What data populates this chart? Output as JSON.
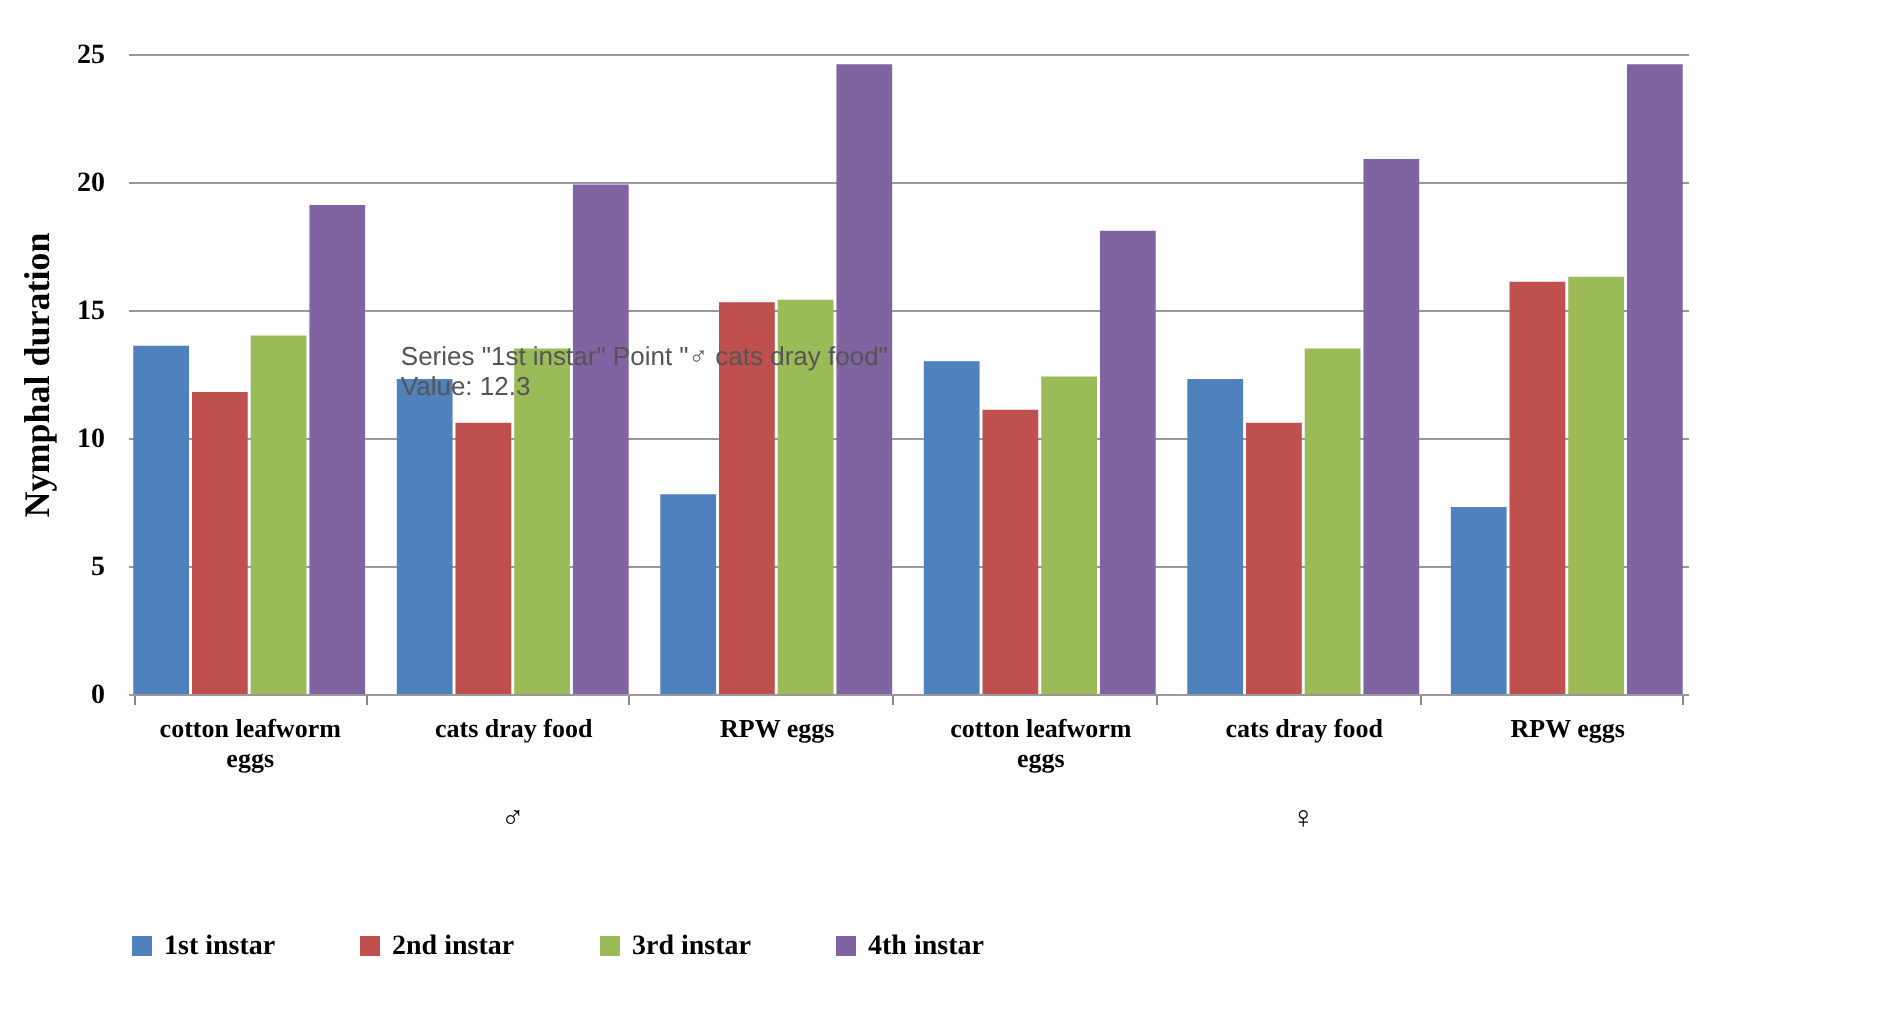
{
  "chart_data": {
    "type": "bar",
    "ylabel": "Nymphal duration",
    "categories": [
      "cotton leafworm eggs",
      "cats dray food",
      "RPW eggs",
      "cotton leafworm eggs",
      "cats dray food",
      "RPW eggs"
    ],
    "series": [
      {
        "name": "1st instar",
        "color": "#4f81bd",
        "values": [
          13.6,
          12.3,
          7.8,
          13.0,
          12.3,
          7.3
        ]
      },
      {
        "name": "2nd instar",
        "color": "#c0504d",
        "values": [
          11.8,
          10.6,
          15.3,
          11.1,
          10.6,
          16.1
        ]
      },
      {
        "name": "3rd instar",
        "color": "#9bbb59",
        "values": [
          14.0,
          13.5,
          15.4,
          12.4,
          13.5,
          16.3
        ]
      },
      {
        "name": "4th instar",
        "color": "#8064a2",
        "values": [
          19.1,
          19.9,
          24.6,
          18.1,
          20.9,
          24.6
        ]
      }
    ],
    "ylim": [
      0,
      25
    ],
    "yticks": [
      0,
      5,
      10,
      15,
      20,
      25
    ],
    "grid": "y",
    "legend": "bottom",
    "annotations": [
      "♂",
      "♀",
      {
        "text": "Series \"1st  instar\" Point \"♂ cats dray food\"\nValue: 12.3",
        "x": "cats dray food",
        "y": 12.3
      }
    ]
  }
}
